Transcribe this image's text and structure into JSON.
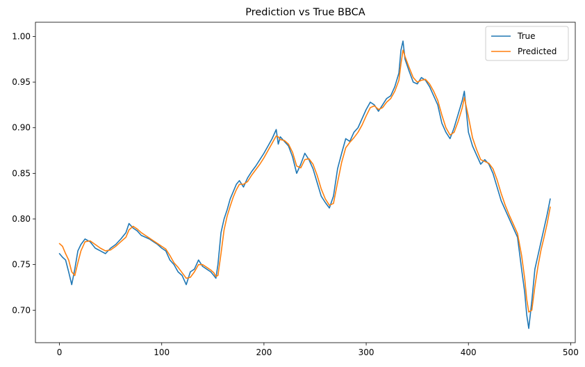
{
  "chart_data": {
    "type": "line",
    "title": "Prediction vs True BBCA",
    "xlabel": "",
    "ylabel": "",
    "xlim": [
      -23.5,
      504.5
    ],
    "ylim": [
      0.6644,
      1.0156
    ],
    "xticks": [
      0,
      100,
      200,
      300,
      400,
      500
    ],
    "yticks": [
      0.7,
      0.75,
      0.8,
      0.85,
      0.9,
      0.95,
      1.0
    ],
    "ytick_labels": [
      "0.70",
      "0.75",
      "0.80",
      "0.85",
      "0.90",
      "0.95",
      "1.00"
    ],
    "grid": false,
    "legend": "top-right",
    "series": [
      {
        "name": "True",
        "color": "#1f77b4",
        "x": [
          0,
          3,
          6,
          9,
          12,
          15,
          18,
          21,
          25,
          30,
          35,
          40,
          45,
          50,
          55,
          60,
          65,
          68,
          72,
          76,
          80,
          84,
          88,
          92,
          96,
          100,
          104,
          108,
          112,
          116,
          120,
          124,
          128,
          132,
          136,
          140,
          144,
          148,
          151,
          153,
          155,
          158,
          161,
          164,
          167,
          170,
          173,
          176,
          180,
          184,
          188,
          192,
          196,
          200,
          204,
          208,
          212,
          214,
          216,
          220,
          224,
          228,
          232,
          236,
          240,
          244,
          248,
          252,
          256,
          260,
          264,
          268,
          272,
          276,
          280,
          284,
          288,
          292,
          296,
          300,
          304,
          308,
          312,
          316,
          320,
          324,
          328,
          332,
          334,
          336,
          338,
          342,
          346,
          350,
          354,
          358,
          362,
          366,
          370,
          374,
          378,
          382,
          386,
          390,
          394,
          396,
          400,
          404,
          408,
          412,
          416,
          420,
          424,
          428,
          432,
          436,
          440,
          444,
          448,
          452,
          455,
          457,
          459,
          462,
          465,
          468,
          471,
          474,
          477,
          480
        ],
        "y": [
          0.762,
          0.758,
          0.755,
          0.742,
          0.728,
          0.745,
          0.765,
          0.772,
          0.778,
          0.775,
          0.768,
          0.765,
          0.762,
          0.768,
          0.772,
          0.778,
          0.785,
          0.795,
          0.79,
          0.787,
          0.782,
          0.78,
          0.778,
          0.775,
          0.772,
          0.768,
          0.765,
          0.755,
          0.75,
          0.742,
          0.738,
          0.728,
          0.742,
          0.745,
          0.755,
          0.748,
          0.745,
          0.742,
          0.738,
          0.735,
          0.75,
          0.785,
          0.8,
          0.81,
          0.822,
          0.83,
          0.838,
          0.842,
          0.835,
          0.845,
          0.852,
          0.858,
          0.865,
          0.872,
          0.88,
          0.888,
          0.898,
          0.882,
          0.89,
          0.885,
          0.88,
          0.868,
          0.85,
          0.86,
          0.872,
          0.865,
          0.855,
          0.84,
          0.825,
          0.818,
          0.812,
          0.825,
          0.855,
          0.872,
          0.888,
          0.885,
          0.895,
          0.9,
          0.91,
          0.92,
          0.928,
          0.925,
          0.918,
          0.925,
          0.932,
          0.935,
          0.945,
          0.96,
          0.985,
          0.995,
          0.975,
          0.962,
          0.95,
          0.948,
          0.955,
          0.952,
          0.945,
          0.935,
          0.925,
          0.905,
          0.895,
          0.888,
          0.9,
          0.915,
          0.93,
          0.94,
          0.895,
          0.88,
          0.87,
          0.86,
          0.865,
          0.86,
          0.85,
          0.835,
          0.82,
          0.81,
          0.8,
          0.79,
          0.78,
          0.745,
          0.72,
          0.695,
          0.68,
          0.71,
          0.745,
          0.76,
          0.775,
          0.79,
          0.805,
          0.822
        ]
      },
      {
        "name": "Predicted",
        "color": "#ff7f0e",
        "x": [
          0,
          3,
          6,
          9,
          12,
          15,
          18,
          21,
          25,
          30,
          35,
          40,
          45,
          50,
          55,
          60,
          65,
          68,
          72,
          76,
          80,
          84,
          88,
          92,
          96,
          100,
          104,
          108,
          112,
          116,
          120,
          124,
          128,
          132,
          136,
          140,
          144,
          148,
          151,
          153,
          155,
          158,
          161,
          164,
          167,
          170,
          173,
          176,
          180,
          184,
          188,
          192,
          196,
          200,
          204,
          208,
          212,
          214,
          216,
          220,
          224,
          228,
          232,
          236,
          240,
          244,
          248,
          252,
          256,
          260,
          264,
          268,
          272,
          276,
          280,
          284,
          288,
          292,
          296,
          300,
          304,
          308,
          312,
          316,
          320,
          324,
          328,
          332,
          334,
          336,
          338,
          342,
          346,
          350,
          354,
          358,
          362,
          366,
          370,
          374,
          378,
          382,
          386,
          390,
          394,
          396,
          400,
          404,
          408,
          412,
          416,
          420,
          424,
          428,
          432,
          436,
          440,
          444,
          448,
          452,
          455,
          457,
          459,
          462,
          465,
          468,
          471,
          474,
          477,
          480
        ],
        "y": [
          0.773,
          0.77,
          0.762,
          0.755,
          0.742,
          0.738,
          0.752,
          0.765,
          0.775,
          0.776,
          0.772,
          0.768,
          0.765,
          0.766,
          0.77,
          0.775,
          0.78,
          0.788,
          0.792,
          0.789,
          0.785,
          0.782,
          0.779,
          0.776,
          0.773,
          0.77,
          0.767,
          0.76,
          0.752,
          0.747,
          0.741,
          0.735,
          0.736,
          0.742,
          0.75,
          0.75,
          0.747,
          0.744,
          0.741,
          0.737,
          0.738,
          0.762,
          0.788,
          0.803,
          0.814,
          0.824,
          0.832,
          0.838,
          0.838,
          0.841,
          0.848,
          0.854,
          0.86,
          0.867,
          0.875,
          0.883,
          0.891,
          0.89,
          0.887,
          0.886,
          0.882,
          0.873,
          0.858,
          0.856,
          0.865,
          0.866,
          0.86,
          0.848,
          0.833,
          0.822,
          0.815,
          0.817,
          0.84,
          0.862,
          0.878,
          0.884,
          0.889,
          0.895,
          0.903,
          0.913,
          0.922,
          0.924,
          0.92,
          0.922,
          0.928,
          0.932,
          0.94,
          0.952,
          0.97,
          0.985,
          0.978,
          0.966,
          0.955,
          0.95,
          0.952,
          0.953,
          0.948,
          0.94,
          0.93,
          0.914,
          0.9,
          0.892,
          0.895,
          0.907,
          0.922,
          0.933,
          0.912,
          0.889,
          0.876,
          0.865,
          0.863,
          0.861,
          0.855,
          0.843,
          0.828,
          0.815,
          0.804,
          0.794,
          0.784,
          0.76,
          0.735,
          0.712,
          0.698,
          0.7,
          0.726,
          0.748,
          0.766,
          0.78,
          0.795,
          0.813
        ]
      }
    ]
  }
}
